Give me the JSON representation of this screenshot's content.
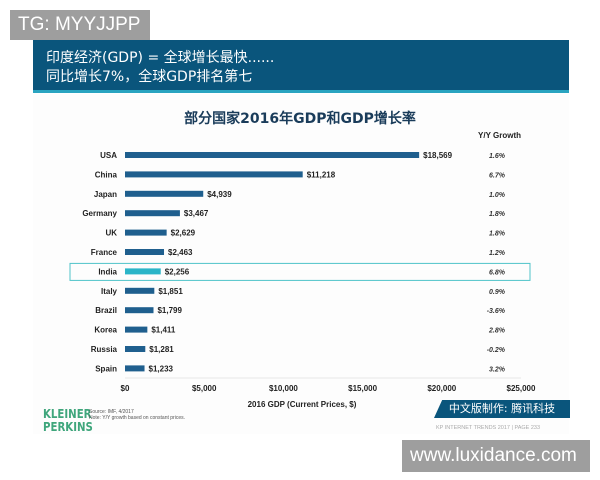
{
  "watermarks": {
    "top_left": "TG: MYYJJPP",
    "bottom_right": "www.luxidance.com"
  },
  "header": {
    "line1": "印度经济(GDP) = 全球增长最快......",
    "line2": "同比增长7%，全球GDP排名第七"
  },
  "colors": {
    "header_bg": "#0a557c",
    "bar": "#1f5f8e",
    "highlight_bar": "#2bb5c8",
    "highlight_border": "#4fc3c9"
  },
  "chart_data": {
    "type": "bar",
    "orientation": "horizontal",
    "title": "部分国家2016年GDP和GDP增长率",
    "xlabel": "2016 GDP (Current Prices, $)",
    "xlim": [
      0,
      25000
    ],
    "xticks": [
      "$0",
      "$5,000",
      "$10,000",
      "$15,000",
      "$20,000",
      "$25,000"
    ],
    "growth_header": "Y/Y Growth",
    "highlight": "India",
    "categories": [
      "USA",
      "China",
      "Japan",
      "Germany",
      "UK",
      "France",
      "India",
      "Italy",
      "Brazil",
      "Korea",
      "Russia",
      "Spain"
    ],
    "values": [
      18569,
      11218,
      4939,
      3467,
      2629,
      2463,
      2256,
      1851,
      1799,
      1411,
      1281,
      1233
    ],
    "value_labels": [
      "$18,569",
      "$11,218",
      "$4,939",
      "$3,467",
      "$2,629",
      "$2,463",
      "$2,256",
      "$1,851",
      "$1,799",
      "$1,411",
      "$1,281",
      "$1,233"
    ],
    "growth": [
      "1.6%",
      "6.7%",
      "1.0%",
      "1.8%",
      "1.8%",
      "1.2%",
      "6.8%",
      "0.9%",
      "-3.6%",
      "2.8%",
      "-0.2%",
      "3.2%"
    ]
  },
  "footer": {
    "logo": "KLEINER PERKINS",
    "source": "Source: IMF, 4/2017",
    "note": "Note: Y/Y growth based on constant prices.",
    "credit": "中文版制作: 腾讯科技",
    "page": "KP INTERNET TRENDS 2017  |  PAGE 233"
  }
}
